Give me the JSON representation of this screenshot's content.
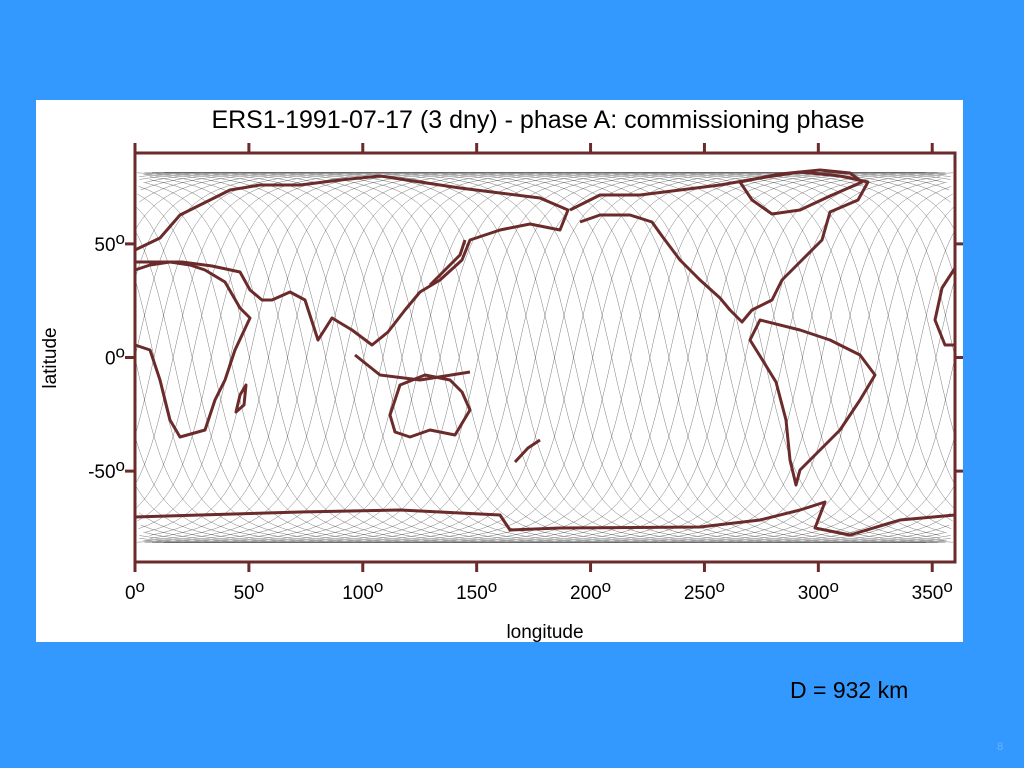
{
  "chart_data": {
    "type": "map",
    "title": "ERS1-1991-07-17 (3 dny) - phase A: commissioning phase",
    "xlabel": "longitude",
    "ylabel": "latitude",
    "degree_symbol": "o",
    "xlim": [
      0,
      360
    ],
    "ylim": [
      -90,
      90
    ],
    "xticks": [
      0,
      50,
      100,
      150,
      200,
      250,
      300,
      350
    ],
    "yticks": [
      -50,
      0,
      50
    ]
  },
  "slide": {
    "note": "D = 932 km",
    "page_number": "8"
  }
}
